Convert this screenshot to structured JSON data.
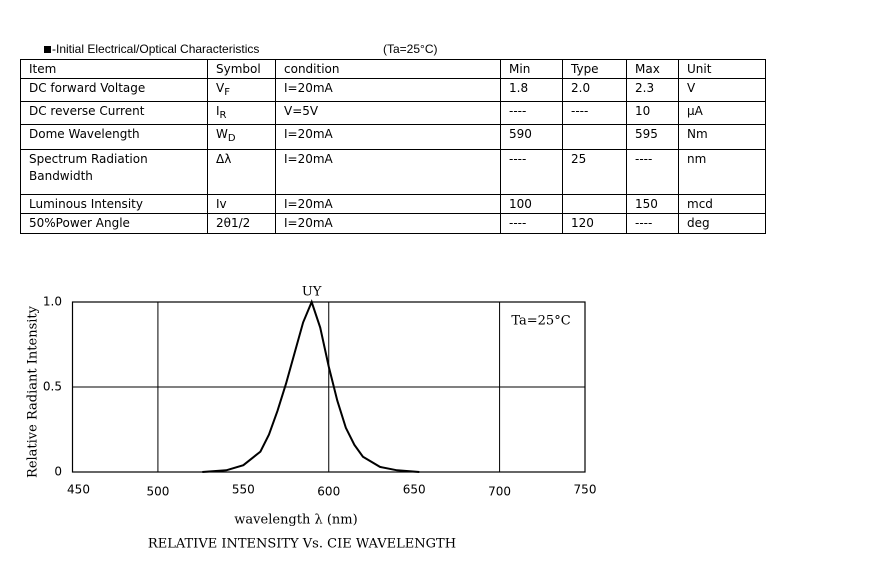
{
  "header": {
    "title": "-Initial Electrical/Optical Characteristics",
    "condition": "(Ta=25°C)"
  },
  "table": {
    "columns": [
      "Item",
      "Symbol",
      "condition",
      "Min",
      "Type",
      "Max",
      "Unit"
    ],
    "rows": [
      [
        "DC forward Voltage",
        {
          "text": "V",
          "sub": "F"
        },
        "I=20mA",
        "1.8",
        "2.0",
        "2.3",
        "V"
      ],
      [
        "DC reverse Current",
        {
          "text": "I",
          "sub": "R"
        },
        "V=5V",
        "----",
        "----",
        "10",
        "μA"
      ],
      [
        "Dome Wavelength",
        {
          "text": "W",
          "sub": "D"
        },
        "I=20mA",
        "590",
        "",
        "595",
        "Nm"
      ],
      [
        "Spectrum Radiation Bandwidth",
        "Δλ",
        "I=20mA",
        "----",
        "25",
        "----",
        "nm"
      ],
      [
        "Luminous Intensity",
        "Iv",
        "I=20mA",
        "100",
        "",
        "150",
        "mcd"
      ],
      [
        "50%Power Angle",
        "2θ1/2",
        "I=20mA",
        "----",
        "120",
        "----",
        "deg"
      ]
    ]
  },
  "chart_data": {
    "type": "line",
    "title": "RELATIVE INTENSITY Vs. CIE WAVELENGTH",
    "x_label": "wavelength λ (nm)",
    "y_label": "Relative Radiant Intensity",
    "annotation": "Ta=25°C",
    "x": [
      526,
      540,
      550,
      560,
      565,
      570,
      575,
      580,
      585,
      590,
      595,
      600,
      605,
      610,
      615,
      620,
      630,
      640,
      653
    ],
    "series": [
      {
        "name": "UY",
        "color": "#000000",
        "values": [
          0,
          0.01,
          0.04,
          0.12,
          0.22,
          0.36,
          0.52,
          0.7,
          0.88,
          1.0,
          0.85,
          0.62,
          0.42,
          0.26,
          0.16,
          0.09,
          0.03,
          0.01,
          0
        ]
      }
    ],
    "xlim": [
      450,
      750
    ],
    "ylim": [
      0,
      1
    ],
    "xticks": [
      450,
      500,
      550,
      600,
      650,
      700,
      750
    ],
    "yticks": [
      0,
      0.5,
      {
        "value": 1,
        "label": "1.0"
      }
    ],
    "grid": true
  }
}
